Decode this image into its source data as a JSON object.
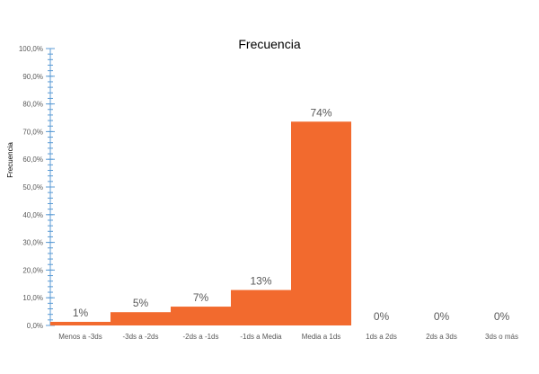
{
  "chart_data": {
    "type": "bar",
    "title": "Frecuencia",
    "xlabel": "",
    "ylabel": "Frecuencia",
    "categories": [
      "Menos a -3ds",
      "-3ds a -2ds",
      "-2ds a -1ds",
      "-1ds a Media",
      "Media a 1ds",
      "1ds a 2ds",
      "2ds a 3ds",
      "3ds o más"
    ],
    "values": [
      0.013,
      0.048,
      0.068,
      0.128,
      0.736,
      0.0,
      0.0,
      0.0
    ],
    "data_labels": [
      "1%",
      "5%",
      "7%",
      "13%",
      "74%",
      "0%",
      "0%",
      "0%"
    ],
    "ylim": [
      0,
      1.0
    ],
    "yticks": [
      "0,0%",
      "10,0%",
      "20,0%",
      "30,0%",
      "40,0%",
      "50,0%",
      "60,0%",
      "70,0%",
      "80,0%",
      "90,0%",
      "100,0%"
    ],
    "grid": false,
    "legend": "none",
    "bar_color": "#f26a2e",
    "axis_color": "#5b9bd5"
  }
}
